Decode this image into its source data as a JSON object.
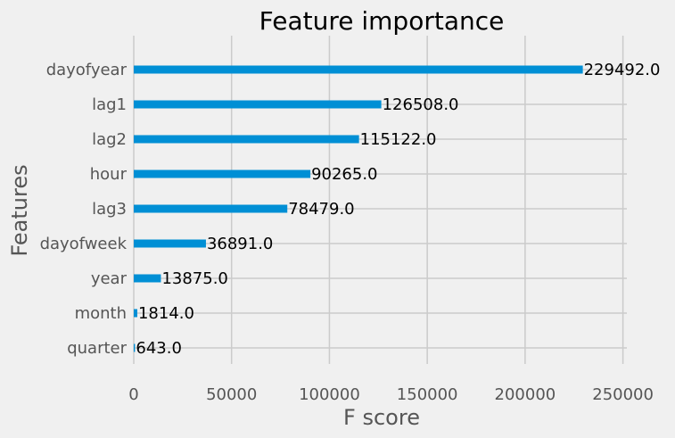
{
  "chart_data": {
    "type": "bar",
    "orientation": "horizontal",
    "title": "Feature importance",
    "xlabel": "F score",
    "ylabel": "Features",
    "categories": [
      "dayofyear",
      "lag1",
      "lag2",
      "hour",
      "lag3",
      "dayofweek",
      "year",
      "month",
      "quarter"
    ],
    "values": [
      229492.0,
      126508.0,
      115122.0,
      90265.0,
      78479.0,
      36891.0,
      13875.0,
      1814.0,
      643.0
    ],
    "value_labels": [
      "229492.0",
      "126508.0",
      "115122.0",
      "90265.0",
      "78479.0",
      "36891.0",
      "13875.0",
      "1814.0",
      "643.0"
    ],
    "xlim": [
      0,
      252000
    ],
    "xticks": [
      0,
      50000,
      100000,
      150000,
      200000,
      250000
    ],
    "xtick_labels": [
      "0",
      "50000",
      "100000",
      "150000",
      "200000",
      "250000"
    ],
    "grid": true,
    "bar_color": "#008fd5",
    "grid_color": "#cbcbcb",
    "background_color": "#f0f0f0"
  }
}
